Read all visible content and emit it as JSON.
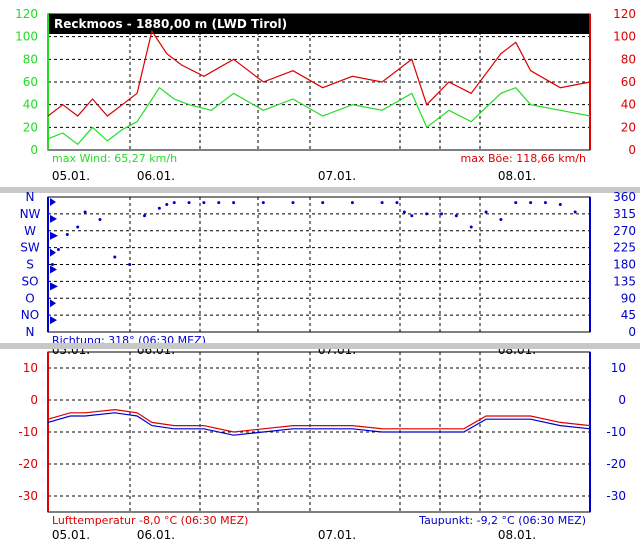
{
  "colors": {
    "green": "#22dd22",
    "red": "#dd0000",
    "blue": "#0000cc",
    "grid": "#000000",
    "separator": "#c8c8c8",
    "title_bg": "#000000"
  },
  "dates": [
    "05.01.",
    "06.01.",
    "07.01.",
    "08.01."
  ],
  "chart_data": [
    {
      "type": "line",
      "title": "Reckmoos - 1880,00 m (LWD Tirol)",
      "ylim_left": [
        0,
        120
      ],
      "ylim_right": [
        0,
        120
      ],
      "yticks_left": [
        0,
        20,
        40,
        60,
        80,
        100,
        120
      ],
      "yticks_right": [
        0,
        20,
        40,
        60,
        80,
        100,
        120
      ],
      "x_range_days": [
        4.75,
        8.4
      ],
      "labels": {
        "left_note": "max Wind: 65,27 km/h",
        "right_note": "max Böe: 118,66 km/h"
      },
      "series": [
        {
          "color": "green",
          "x": [
            4.75,
            4.85,
            4.95,
            5.05,
            5.15,
            5.25,
            5.35,
            5.5,
            5.6,
            5.7,
            5.85,
            6.0,
            6.2,
            6.4,
            6.6,
            6.8,
            7.0,
            7.2,
            7.3,
            7.45,
            7.6,
            7.8,
            7.9,
            8.0,
            8.2,
            8.4
          ],
          "y": [
            10,
            15,
            5,
            20,
            8,
            18,
            25,
            55,
            45,
            40,
            35,
            50,
            35,
            45,
            30,
            40,
            35,
            50,
            20,
            35,
            25,
            50,
            55,
            40,
            35,
            30
          ]
        },
        {
          "color": "red",
          "x": [
            4.75,
            4.85,
            4.95,
            5.05,
            5.15,
            5.25,
            5.35,
            5.45,
            5.55,
            5.65,
            5.8,
            6.0,
            6.2,
            6.4,
            6.6,
            6.8,
            7.0,
            7.2,
            7.3,
            7.45,
            7.6,
            7.8,
            7.9,
            8.0,
            8.2,
            8.4
          ],
          "y": [
            30,
            40,
            30,
            45,
            30,
            40,
            50,
            105,
            85,
            75,
            65,
            80,
            60,
            70,
            55,
            65,
            60,
            80,
            40,
            60,
            50,
            85,
            95,
            70,
            55,
            60
          ]
        }
      ]
    },
    {
      "type": "scatter",
      "ylim_right": [
        0,
        360
      ],
      "yticks_right": [
        0,
        45,
        90,
        135,
        180,
        225,
        270,
        315,
        360
      ],
      "compass_labels": [
        "N",
        "NW",
        "W",
        "SW",
        "S",
        "SO",
        "O",
        "NO",
        "N"
      ],
      "labels": {
        "left_note": "Richtung: 318° (06:30 MEZ)"
      },
      "series": [
        {
          "color": "blue",
          "x": [
            4.78,
            4.82,
            4.88,
            4.95,
            5.0,
            5.1,
            5.2,
            5.3,
            5.4,
            5.5,
            5.55,
            5.6,
            5.7,
            5.8,
            5.9,
            6.0,
            6.2,
            6.4,
            6.6,
            6.8,
            7.0,
            7.1,
            7.15,
            7.2,
            7.3,
            7.4,
            7.5,
            7.6,
            7.7,
            7.8,
            7.9,
            8.0,
            8.1,
            8.2,
            8.3
          ],
          "y": [
            180,
            220,
            260,
            280,
            320,
            300,
            200,
            180,
            310,
            330,
            340,
            345,
            345,
            345,
            345,
            345,
            345,
            345,
            345,
            345,
            345,
            345,
            320,
            310,
            315,
            315,
            310,
            280,
            320,
            300,
            345,
            345,
            345,
            340,
            320
          ]
        }
      ]
    },
    {
      "type": "line",
      "ylim": [
        -35,
        15
      ],
      "yticks_left": [
        -30,
        -20,
        -10,
        0,
        10
      ],
      "yticks_right": [
        -30,
        -20,
        -10,
        0,
        10
      ],
      "labels": {
        "left_note": "Lufttemperatur -8,0 °C (06:30 MEZ)",
        "right_note": "Taupunkt: -9,2 °C (06:30 MEZ)"
      },
      "series": [
        {
          "color": "red",
          "x": [
            4.75,
            4.9,
            5.0,
            5.2,
            5.35,
            5.45,
            5.6,
            5.8,
            6.0,
            6.2,
            6.4,
            6.6,
            6.8,
            7.0,
            7.2,
            7.4,
            7.55,
            7.7,
            7.9,
            8.0,
            8.2,
            8.4
          ],
          "y": [
            -6,
            -4,
            -4,
            -3,
            -4,
            -7,
            -8,
            -8,
            -10,
            -9,
            -8,
            -8,
            -8,
            -9,
            -9,
            -9,
            -9,
            -5,
            -5,
            -5,
            -7,
            -8
          ]
        },
        {
          "color": "blue",
          "x": [
            4.75,
            4.9,
            5.0,
            5.2,
            5.35,
            5.45,
            5.6,
            5.8,
            6.0,
            6.2,
            6.4,
            6.6,
            6.8,
            7.0,
            7.2,
            7.4,
            7.55,
            7.7,
            7.9,
            8.0,
            8.2,
            8.4
          ],
          "y": [
            -7,
            -5,
            -5,
            -4,
            -5,
            -8,
            -9,
            -9,
            -11,
            -10,
            -9,
            -9,
            -9,
            -10,
            -10,
            -10,
            -10,
            -6,
            -6,
            -6,
            -8,
            -9
          ]
        }
      ]
    }
  ]
}
